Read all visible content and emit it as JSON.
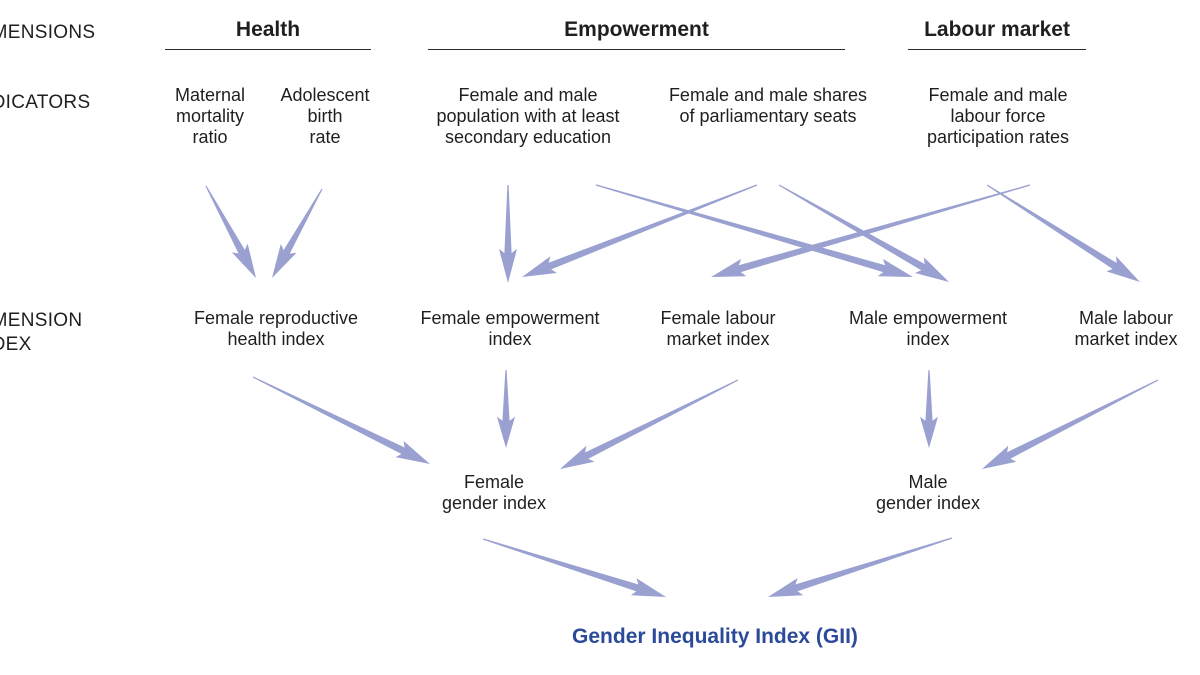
{
  "row_labels": {
    "dimensions": "DIMENSIONS",
    "indicators": "INDICATORS",
    "dimension_index": "DIMENSION\nINDEX"
  },
  "dimensions": {
    "health": "Health",
    "empowerment": "Empowerment",
    "labour_market": "Labour market"
  },
  "indicators": {
    "maternal_mortality": "Maternal\nmortality\nratio",
    "adolescent_birth": "Adolescent\nbirth\nrate",
    "secondary_education": "Female and male\npopulation with at least\nsecondary education",
    "parliamentary_seats": "Female and male shares\nof parliamentary seats",
    "labour_force": "Female and male\nlabour force\nparticipation rates"
  },
  "dimension_indices": {
    "female_reproductive_health": "Female reproductive\nhealth index",
    "female_empowerment": "Female empowerment\nindex",
    "female_labour_market": "Female labour\nmarket index",
    "male_empowerment": "Male empowerment\nindex",
    "male_labour_market": "Male labour\nmarket index"
  },
  "gender_indices": {
    "female": "Female\ngender index",
    "male": "Male\ngender index"
  },
  "result": {
    "gii": "Gender Inequality Index (GII)"
  },
  "colors": {
    "arrow": "#9aa1d1",
    "gii_text": "#2b4a9a",
    "text": "#1f1f1f"
  }
}
